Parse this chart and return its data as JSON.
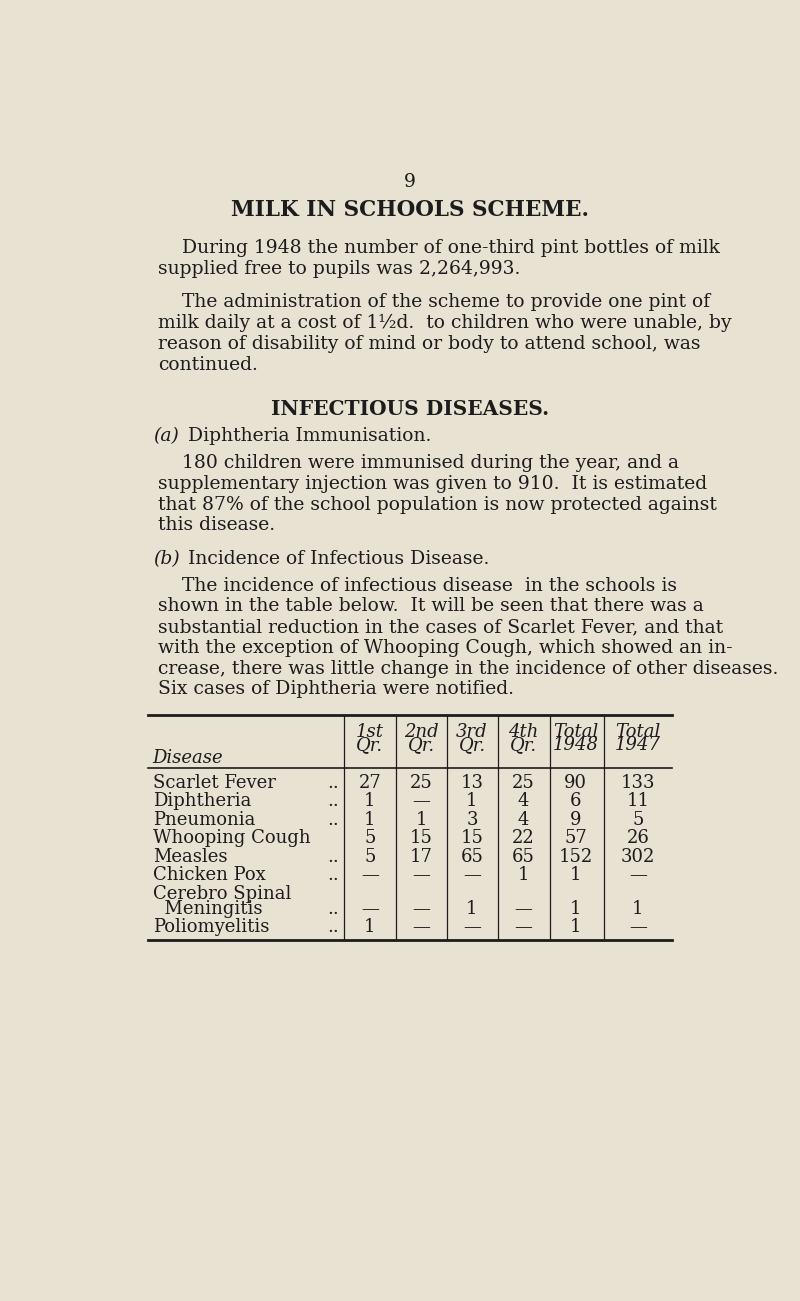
{
  "bg_color": "#e8e2d2",
  "page_number": "9",
  "title": "MILK IN SCHOOLS SCHEME.",
  "para1_indent": "    During 1948 the number of one-third pint bottles of milk",
  "para1_line2": "supplied free to pupils was 2,264,993.",
  "para2_indent": "    The administration of the scheme to provide one pint of",
  "para2_line2": "milk daily at a cost of 1½d.  to children who were unable, by",
  "para2_line3": "reason of disability of mind or body to attend school, was",
  "para2_line4": "continued.",
  "section_title": "INFECTIOUS DISEASES.",
  "sub_a_marker": "(a)",
  "sub_a_text": "Diphtheria Immunisation.",
  "para3_indent": "    180 children were immunised during the year, and a",
  "para3_line2": "supplementary injection was given to 910.  It is estimated",
  "para3_line3": "that 87% of the school population is now protected against",
  "para3_line4": "this disease.",
  "sub_b_marker": "(b)",
  "sub_b_text": "Incidence of Infectious Disease.",
  "para4_indent": "    The incidence of infectious disease  in the schools is",
  "para4_line2": "shown in the table below.  It will be seen that there was a",
  "para4_line3": "substantial reduction in the cases of Scarlet Fever, and that",
  "para4_line4": "with the exception of Whooping Cough, which showed an in-",
  "para4_line5": "crease, there was little change in the incidence of other diseases.",
  "para4_line6": "Six cases of Diphtheria were notified.",
  "table_col_headers_row1": [
    "",
    "1st",
    "2nd",
    "3rd",
    "4th",
    "Total",
    "Total"
  ],
  "table_col_headers_row2": [
    "Disease",
    "Qr.",
    "Qr.",
    "Qr.",
    "Qr.",
    "1948",
    "1947"
  ],
  "table_rows": [
    [
      "Scarlet Fever",
      "..",
      "27",
      "25",
      "13",
      "25",
      "90",
      "133"
    ],
    [
      "Diphtheria",
      "..",
      "1",
      "—",
      "1",
      "4",
      "6",
      "11"
    ],
    [
      "Pneumonia",
      "..",
      "1",
      "1",
      "3",
      "4",
      "9",
      "5"
    ],
    [
      "Whooping Cough",
      "",
      "5",
      "15",
      "15",
      "22",
      "57",
      "26"
    ],
    [
      "Measles",
      "..",
      "5",
      "17",
      "65",
      "65",
      "152",
      "302"
    ],
    [
      "Chicken Pox",
      "..",
      "—",
      "—",
      "—",
      "1",
      "1",
      "—"
    ],
    [
      "Cerebro Spinal",
      "",
      "",
      "",
      "",
      "",
      "",
      ""
    ],
    [
      "  Meningitis",
      "..",
      "—",
      "—",
      "1",
      "—",
      "1",
      "1"
    ],
    [
      "Poliomyelitis",
      "..",
      "1",
      "—",
      "—",
      "—",
      "1",
      "—"
    ]
  ],
  "text_color": "#1c1c1c",
  "line_color": "#1c1c1c",
  "body_fontsize": 13.5,
  "title_fontsize": 15.5,
  "section_fontsize": 14.5,
  "table_fontsize": 13.0
}
